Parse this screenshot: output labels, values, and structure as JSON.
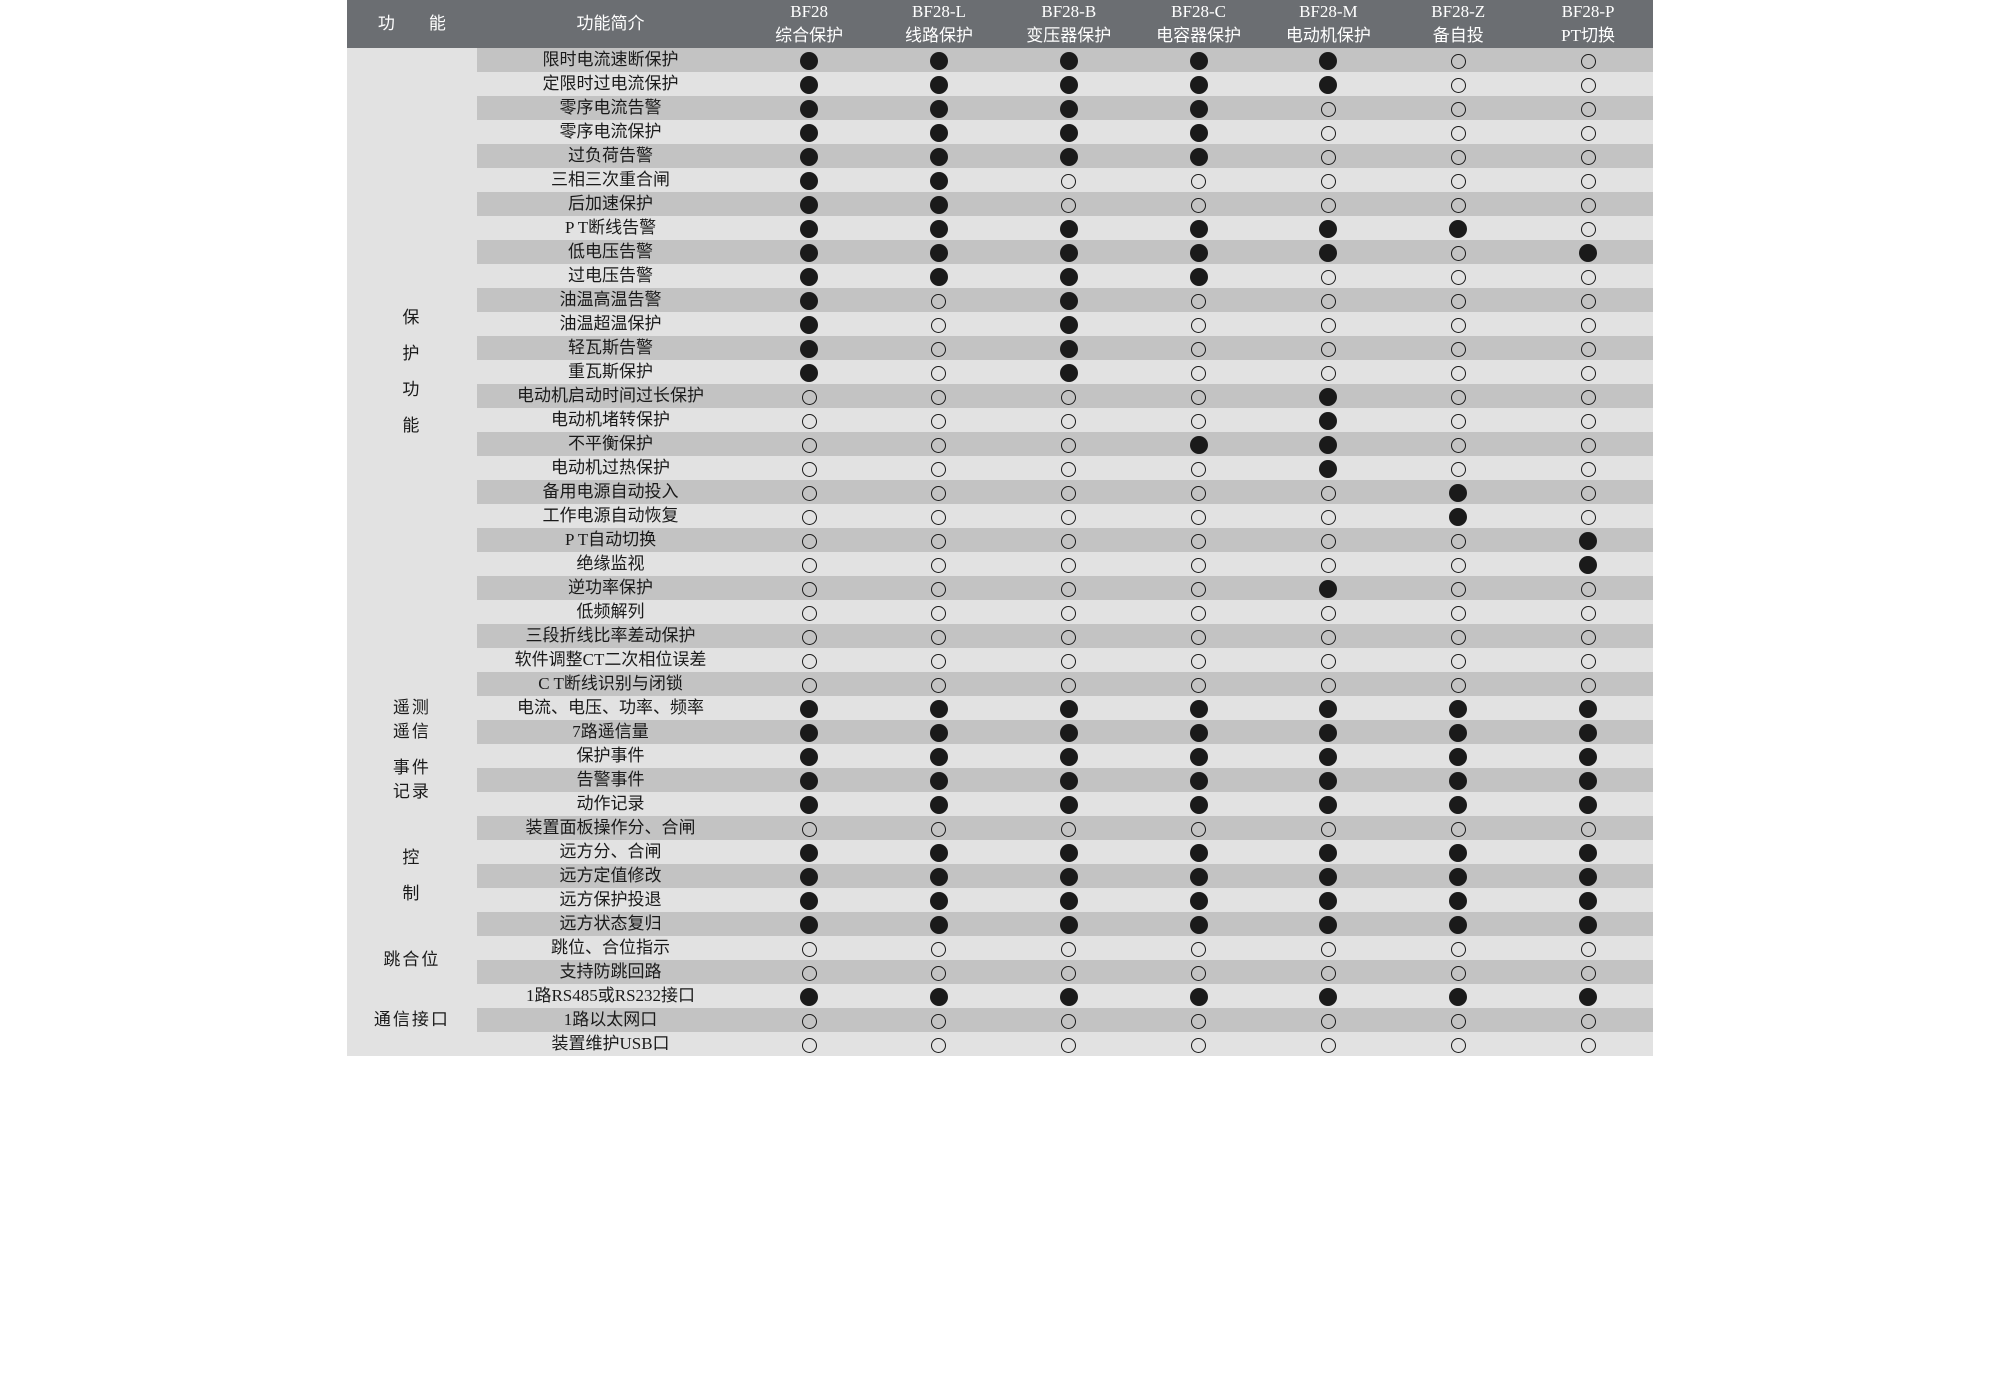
{
  "header": {
    "func": "功　　能",
    "desc": "功能简介",
    "models": [
      {
        "code": "BF28",
        "name": "综合保护"
      },
      {
        "code": "BF28-L",
        "name": "线路保护"
      },
      {
        "code": "BF28-B",
        "name": "变压器保护"
      },
      {
        "code": "BF28-C",
        "name": "电容器保护"
      },
      {
        "code": "BF28-M",
        "name": "电动机保护"
      },
      {
        "code": "BF28-Z",
        "name": "备自投"
      },
      {
        "code": "BF28-P",
        "name": "PT切换"
      }
    ]
  },
  "symbols": {
    "filled": "filled",
    "empty": "empty"
  },
  "colors": {
    "header_bg": "#6b6e72",
    "header_fg": "#ffffff",
    "row_a": "#c3c3c3",
    "row_b": "#e2e2e2",
    "dot": "#1a1a1a"
  },
  "font": {
    "family": "SimSun",
    "size_pt": 13
  },
  "categories": [
    {
      "label_lines": [
        "保",
        "护",
        "功",
        "能"
      ],
      "rows": [
        {
          "desc": "限时电流速断保护",
          "v": [
            1,
            1,
            1,
            1,
            1,
            0,
            0
          ]
        },
        {
          "desc": "定限时过电流保护",
          "v": [
            1,
            1,
            1,
            1,
            1,
            0,
            0
          ]
        },
        {
          "desc": "零序电流告警",
          "v": [
            1,
            1,
            1,
            1,
            0,
            0,
            0
          ]
        },
        {
          "desc": "零序电流保护",
          "v": [
            1,
            1,
            1,
            1,
            0,
            0,
            0
          ]
        },
        {
          "desc": "过负荷告警",
          "v": [
            1,
            1,
            1,
            1,
            0,
            0,
            0
          ]
        },
        {
          "desc": "三相三次重合闸",
          "v": [
            1,
            1,
            0,
            0,
            0,
            0,
            0
          ]
        },
        {
          "desc": "后加速保护",
          "v": [
            1,
            1,
            0,
            0,
            0,
            0,
            0
          ]
        },
        {
          "desc": "P T断线告警",
          "v": [
            1,
            1,
            1,
            1,
            1,
            1,
            0
          ]
        },
        {
          "desc": "低电压告警",
          "v": [
            1,
            1,
            1,
            1,
            1,
            0,
            1
          ]
        },
        {
          "desc": "过电压告警",
          "v": [
            1,
            1,
            1,
            1,
            0,
            0,
            0
          ]
        },
        {
          "desc": "油温高温告警",
          "v": [
            1,
            0,
            1,
            0,
            0,
            0,
            0
          ]
        },
        {
          "desc": "油温超温保护",
          "v": [
            1,
            0,
            1,
            0,
            0,
            0,
            0
          ]
        },
        {
          "desc": "轻瓦斯告警",
          "v": [
            1,
            0,
            1,
            0,
            0,
            0,
            0
          ]
        },
        {
          "desc": "重瓦斯保护",
          "v": [
            1,
            0,
            1,
            0,
            0,
            0,
            0
          ]
        },
        {
          "desc": "电动机启动时间过长保护",
          "v": [
            0,
            0,
            0,
            0,
            1,
            0,
            0
          ]
        },
        {
          "desc": "电动机堵转保护",
          "v": [
            0,
            0,
            0,
            0,
            1,
            0,
            0
          ]
        },
        {
          "desc": "不平衡保护",
          "v": [
            0,
            0,
            0,
            1,
            1,
            0,
            0
          ]
        },
        {
          "desc": "电动机过热保护",
          "v": [
            0,
            0,
            0,
            0,
            1,
            0,
            0
          ]
        },
        {
          "desc": "备用电源自动投入",
          "v": [
            0,
            0,
            0,
            0,
            0,
            1,
            0
          ]
        },
        {
          "desc": "工作电源自动恢复",
          "v": [
            0,
            0,
            0,
            0,
            0,
            1,
            0
          ]
        },
        {
          "desc": "P T自动切换",
          "v": [
            0,
            0,
            0,
            0,
            0,
            0,
            1
          ]
        },
        {
          "desc": "绝缘监视",
          "v": [
            0,
            0,
            0,
            0,
            0,
            0,
            1
          ]
        },
        {
          "desc": "逆功率保护",
          "v": [
            0,
            0,
            0,
            0,
            1,
            0,
            0
          ]
        },
        {
          "desc": "低频解列",
          "v": [
            0,
            0,
            0,
            0,
            0,
            0,
            0
          ]
        },
        {
          "desc": "三段折线比率差动保护",
          "v": [
            0,
            0,
            0,
            0,
            0,
            0,
            0
          ]
        },
        {
          "desc": "软件调整CT二次相位误差",
          "v": [
            0,
            0,
            0,
            0,
            0,
            0,
            0
          ]
        },
        {
          "desc": "C T断线识别与闭锁",
          "v": [
            0,
            0,
            0,
            0,
            0,
            0,
            0
          ]
        }
      ]
    },
    {
      "label_lines": [
        "遥测",
        "遥信"
      ],
      "rows": [
        {
          "desc": "电流、电压、功率、频率",
          "v": [
            1,
            1,
            1,
            1,
            1,
            1,
            1
          ]
        },
        {
          "desc": "7路遥信量",
          "v": [
            1,
            1,
            1,
            1,
            1,
            1,
            1
          ]
        }
      ]
    },
    {
      "label_lines": [
        "事件",
        "记录"
      ],
      "rows": [
        {
          "desc": "保护事件",
          "v": [
            1,
            1,
            1,
            1,
            1,
            1,
            1
          ]
        },
        {
          "desc": "告警事件",
          "v": [
            1,
            1,
            1,
            1,
            1,
            1,
            1
          ]
        },
        {
          "desc": "动作记录",
          "v": [
            1,
            1,
            1,
            1,
            1,
            1,
            1
          ]
        }
      ]
    },
    {
      "label_lines": [
        "控",
        "制"
      ],
      "rows": [
        {
          "desc": "装置面板操作分、合闸",
          "v": [
            0,
            0,
            0,
            0,
            0,
            0,
            0
          ]
        },
        {
          "desc": "远方分、合闸",
          "v": [
            1,
            1,
            1,
            1,
            1,
            1,
            1
          ]
        },
        {
          "desc": "远方定值修改",
          "v": [
            1,
            1,
            1,
            1,
            1,
            1,
            1
          ]
        },
        {
          "desc": "远方保护投退",
          "v": [
            1,
            1,
            1,
            1,
            1,
            1,
            1
          ]
        },
        {
          "desc": "远方状态复归",
          "v": [
            1,
            1,
            1,
            1,
            1,
            1,
            1
          ]
        }
      ]
    },
    {
      "label_lines": [
        "跳合位"
      ],
      "rows": [
        {
          "desc": "跳位、合位指示",
          "v": [
            0,
            0,
            0,
            0,
            0,
            0,
            0
          ]
        },
        {
          "desc": "支持防跳回路",
          "v": [
            0,
            0,
            0,
            0,
            0,
            0,
            0
          ]
        }
      ]
    },
    {
      "label_lines": [
        "通信接口"
      ],
      "rows": [
        {
          "desc": "1路RS485或RS232接口",
          "v": [
            1,
            1,
            1,
            1,
            1,
            1,
            1
          ]
        },
        {
          "desc": "1路以太网口",
          "v": [
            0,
            0,
            0,
            0,
            0,
            0,
            0
          ]
        },
        {
          "desc": "装置维护USB口",
          "v": [
            0,
            0,
            0,
            0,
            0,
            0,
            0
          ]
        }
      ]
    }
  ]
}
